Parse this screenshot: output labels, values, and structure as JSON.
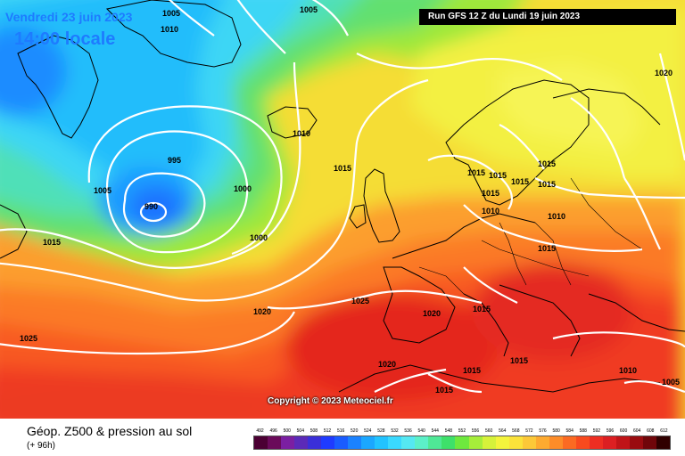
{
  "header": {
    "date": "Vendredi 23 juin 2023",
    "local_time": "14:00 locale",
    "run_info": "Run GFS 12 Z du Lundi 19 juin 2023"
  },
  "map": {
    "copyright": "Copyright © 2023 Meteociel.fr",
    "isobar_labels": [
      "1005",
      "1010",
      "1005",
      "1010",
      "1015",
      "1015",
      "1015",
      "1015",
      "1015",
      "1010",
      "1015",
      "1015",
      "1010",
      "995",
      "1005",
      "990",
      "1000",
      "1000",
      "1015",
      "1020",
      "1025",
      "1020",
      "1015",
      "1015",
      "1025",
      "1020",
      "1015",
      "1015",
      "1015",
      "1010",
      "1005",
      "1020"
    ]
  },
  "legend": {
    "title": "Géop. Z500 & pression au sol",
    "subtitle": "(+ 96h)",
    "scale_labels": [
      "492",
      "496",
      "500",
      "504",
      "508",
      "512",
      "516",
      "520",
      "524",
      "528",
      "532",
      "536",
      "540",
      "544",
      "548",
      "552",
      "556",
      "560",
      "564",
      "568",
      "572",
      "576",
      "580",
      "584",
      "588",
      "592",
      "596",
      "600",
      "604",
      "608",
      "612"
    ],
    "scale_colors": [
      "#4b0033",
      "#6a0a5a",
      "#7b1fa2",
      "#5b2ab8",
      "#3a2fd8",
      "#1f3bff",
      "#1a5cff",
      "#1b82ff",
      "#1ba7ff",
      "#22c3ff",
      "#3ad9ff",
      "#55e8f2",
      "#5cf0c8",
      "#4fe896",
      "#3ee06a",
      "#6ee83e",
      "#a6ee3a",
      "#d6f23a",
      "#f4f43c",
      "#fbe23a",
      "#fcc838",
      "#fdaa30",
      "#fd8c28",
      "#fb6a22",
      "#f84a1e",
      "#ee2e22",
      "#dc1f22",
      "#c01418",
      "#9a0c10",
      "#70060a",
      "#300000"
    ]
  }
}
